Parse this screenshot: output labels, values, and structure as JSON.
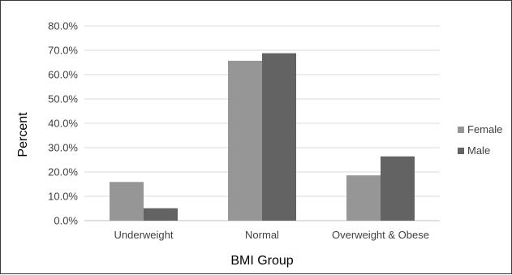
{
  "chart_data": {
    "type": "bar",
    "title": "",
    "xlabel": "BMI Group",
    "ylabel": "Percent",
    "ylim": [
      0,
      80
    ],
    "yticks": [
      "0.0%",
      "10.0%",
      "20.0%",
      "30.0%",
      "40.0%",
      "50.0%",
      "60.0%",
      "70.0%",
      "80.0%"
    ],
    "categories": [
      "Underweight",
      "Normal",
      "Overweight & Obese"
    ],
    "series": [
      {
        "name": "Female",
        "values": [
          15.9,
          65.7,
          18.6
        ],
        "color": "#969696"
      },
      {
        "name": "Male",
        "values": [
          5.1,
          68.8,
          26.4
        ],
        "color": "#636363"
      }
    ],
    "grid": true,
    "legend": "right"
  }
}
